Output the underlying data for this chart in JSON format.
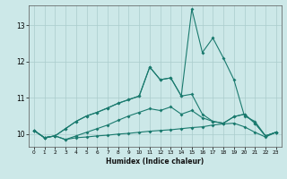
{
  "xlabel": "Humidex (Indice chaleur)",
  "bg_color": "#cce8e8",
  "grid_color": "#aacccc",
  "line_color": "#1a7a6e",
  "x": [
    0,
    1,
    2,
    3,
    4,
    5,
    6,
    7,
    8,
    9,
    10,
    11,
    12,
    13,
    14,
    15,
    16,
    17,
    18,
    19,
    20,
    21,
    22,
    23
  ],
  "line1": [
    10.1,
    9.9,
    9.95,
    9.85,
    9.9,
    9.92,
    9.95,
    9.97,
    10.0,
    10.02,
    10.05,
    10.08,
    10.1,
    10.12,
    10.15,
    10.18,
    10.2,
    10.25,
    10.28,
    10.3,
    10.2,
    10.05,
    9.92,
    10.05
  ],
  "line2": [
    10.1,
    9.9,
    9.95,
    9.85,
    9.95,
    10.05,
    10.15,
    10.25,
    10.38,
    10.5,
    10.6,
    10.7,
    10.65,
    10.75,
    10.55,
    10.65,
    10.45,
    10.35,
    10.3,
    10.48,
    10.55,
    10.3,
    9.95,
    10.05
  ],
  "line3": [
    10.1,
    9.9,
    9.95,
    10.15,
    10.35,
    10.5,
    10.6,
    10.72,
    10.85,
    10.95,
    11.05,
    11.85,
    11.5,
    11.55,
    11.05,
    11.1,
    10.55,
    10.35,
    10.3,
    10.48,
    10.55,
    10.3,
    9.95,
    10.05
  ],
  "line4": [
    10.1,
    9.9,
    9.95,
    10.15,
    10.35,
    10.5,
    10.6,
    10.72,
    10.85,
    10.95,
    11.05,
    11.85,
    11.5,
    11.55,
    11.05,
    13.45,
    12.25,
    12.65,
    12.1,
    11.5,
    10.5,
    10.35,
    9.95,
    10.05
  ],
  "ylim": [
    9.65,
    13.55
  ],
  "yticks": [
    10,
    11,
    12,
    13
  ],
  "xticks": [
    0,
    1,
    2,
    3,
    4,
    5,
    6,
    7,
    8,
    9,
    10,
    11,
    12,
    13,
    14,
    15,
    16,
    17,
    18,
    19,
    20,
    21,
    22,
    23
  ]
}
